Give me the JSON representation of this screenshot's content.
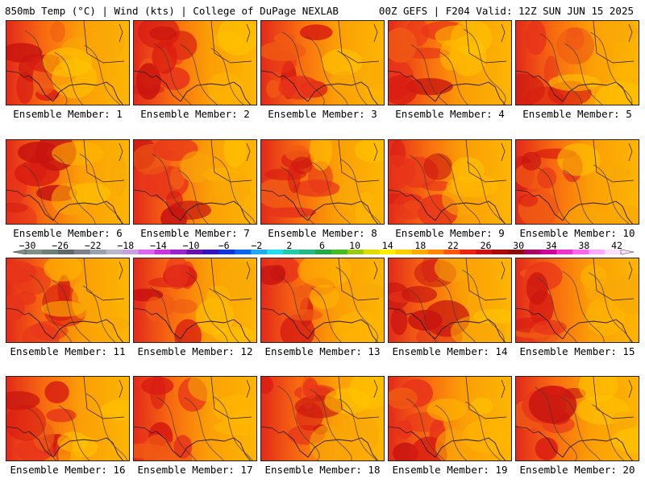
{
  "header": {
    "left_title": "850mb Temp (°C) | Wind (kts) | College of DuPage NEXLAB",
    "right_title": "00Z GEFS | F204 Valid: 12Z SUN JUN 15 2025"
  },
  "colorbar": {
    "tick_labels": [
      "−30",
      "−26",
      "−22",
      "−18",
      "−14",
      "−10",
      "−6",
      "−2",
      "2",
      "6",
      "10",
      "14",
      "18",
      "22",
      "26",
      "30",
      "34",
      "38",
      "42"
    ],
    "colors": [
      "#7f8f87",
      "#6e7f77",
      "#5f6a68",
      "#80808a",
      "#9aa0ae",
      "#b8b8cc",
      "#c8a0e0",
      "#dd66ee",
      "#cc33dd",
      "#9922cc",
      "#6611aa",
      "#3311bb",
      "#1133dd",
      "#0a66ee",
      "#22aaee",
      "#22ddee",
      "#22ccaa",
      "#22bb88",
      "#22aa44",
      "#44bb22",
      "#99cc11",
      "#dddd00",
      "#ffee00",
      "#ffcc00",
      "#ffaa00",
      "#ff8800",
      "#ff5511",
      "#ee2211",
      "#cc1111",
      "#aa0a0a",
      "#880a0a",
      "#aa0066",
      "#cc0099",
      "#ee33cc",
      "#ff66ee",
      "#ffaaff",
      "#ffddff"
    ]
  },
  "members": [
    {
      "label": "Ensemble Member: 1"
    },
    {
      "label": "Ensemble Member: 2"
    },
    {
      "label": "Ensemble Member: 3"
    },
    {
      "label": "Ensemble Member: 4"
    },
    {
      "label": "Ensemble Member: 5"
    },
    {
      "label": "Ensemble Member: 6"
    },
    {
      "label": "Ensemble Member: 7"
    },
    {
      "label": "Ensemble Member: 8"
    },
    {
      "label": "Ensemble Member: 9"
    },
    {
      "label": "Ensemble Member: 10"
    },
    {
      "label": "Ensemble Member: 11"
    },
    {
      "label": "Ensemble Member: 12"
    },
    {
      "label": "Ensemble Member: 13"
    },
    {
      "label": "Ensemble Member: 14"
    },
    {
      "label": "Ensemble Member: 15"
    },
    {
      "label": "Ensemble Member: 16"
    },
    {
      "label": "Ensemble Member: 17"
    },
    {
      "label": "Ensemble Member: 18"
    },
    {
      "label": "Ensemble Member: 19"
    },
    {
      "label": "Ensemble Member: 20"
    }
  ]
}
